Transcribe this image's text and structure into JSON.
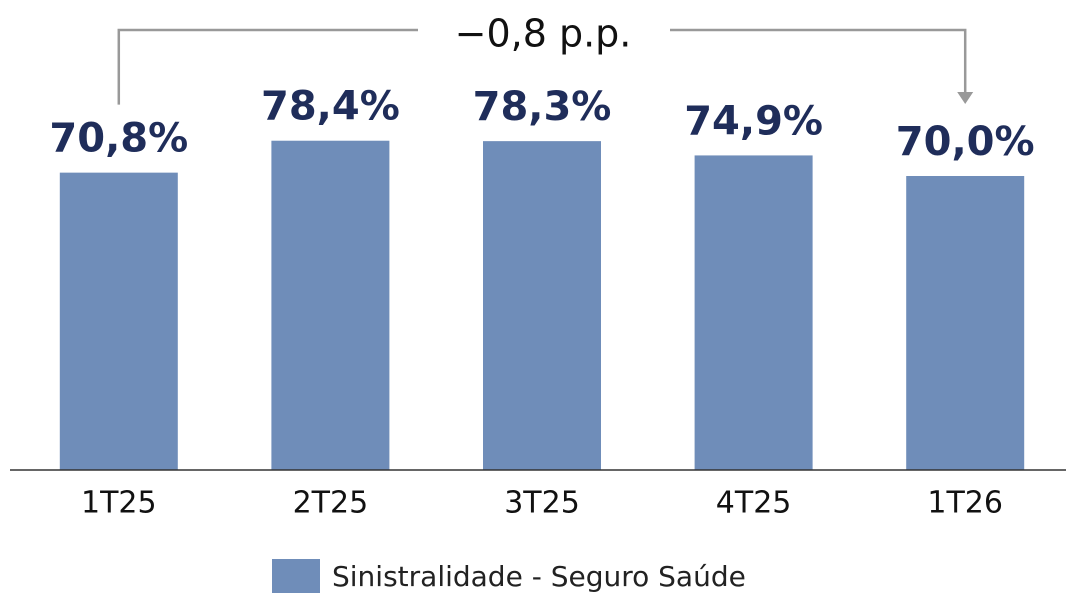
{
  "chart_data": {
    "type": "bar",
    "annotation": "−0,8 p.p.",
    "categories": [
      "1T25",
      "2T25",
      "3T25",
      "4T25",
      "1T26"
    ],
    "series": [
      {
        "name": "Sinistralidade - Seguro Saúde",
        "color": "#6f8db9",
        "values": [
          70.8,
          78.4,
          78.3,
          74.9,
          70.0
        ],
        "value_labels": [
          "70,8%",
          "78,4%",
          "78,3%",
          "74,9%",
          "70,0%"
        ]
      }
    ],
    "ylim": [
      0,
      110
    ],
    "legend": "bottom"
  }
}
